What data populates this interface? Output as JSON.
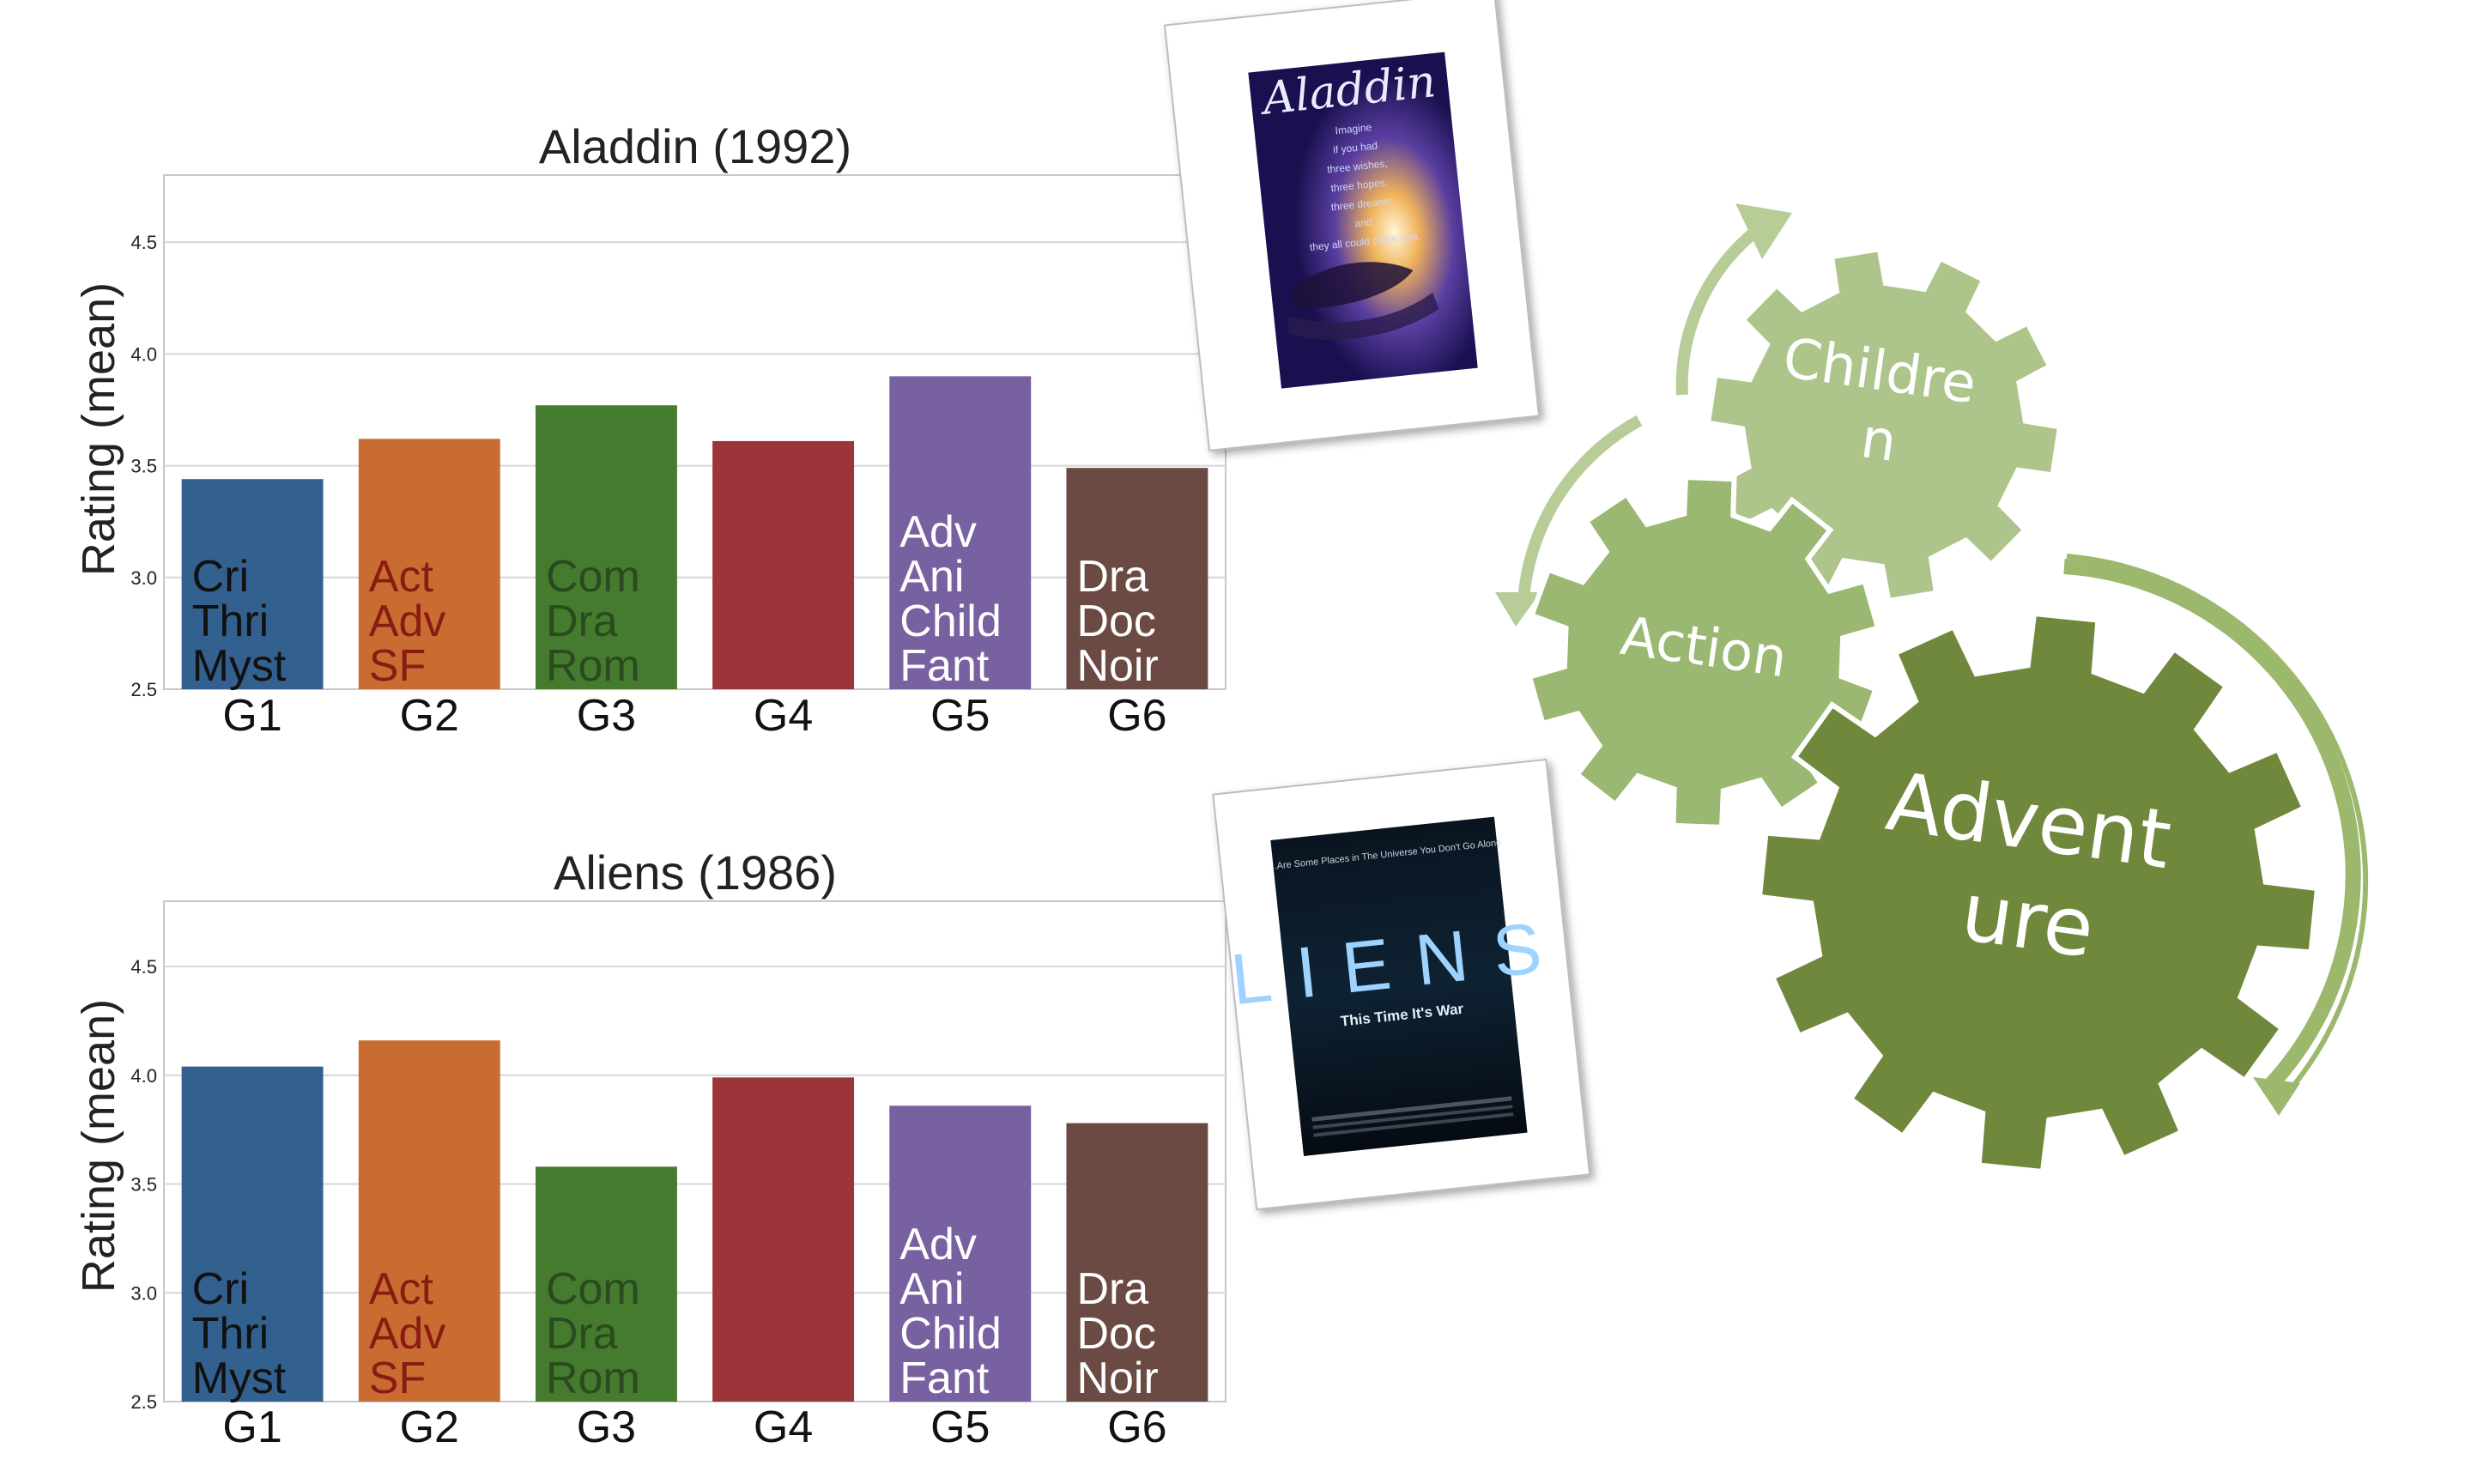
{
  "chart_data": [
    {
      "type": "bar",
      "title": "Aladdin (1992)",
      "ylabel": "Rating (mean)",
      "xlabel": "",
      "ylim": [
        2.5,
        4.8
      ],
      "yticks": [
        "2.5",
        "3.0",
        "3.5",
        "4.0",
        "4.5"
      ],
      "grid": true,
      "categories": [
        "G1",
        "G2",
        "G3",
        "G4",
        "G5",
        "G6"
      ],
      "values": [
        3.44,
        3.62,
        3.77,
        3.61,
        3.9,
        3.49
      ],
      "bar_labels": [
        [
          "Cri",
          "Thri",
          "Myst"
        ],
        [
          "Act",
          "Adv",
          "SF"
        ],
        [
          "Com",
          "Dra",
          "Rom"
        ],
        [],
        [
          "Adv",
          "Ani",
          "Child",
          "Fant"
        ],
        [
          "Dra",
          "Doc",
          "Noir"
        ]
      ],
      "colors": [
        "#33618f",
        "#c96c32",
        "#457b2e",
        "#9c3539",
        "#7761a0",
        "#6a4a42"
      ],
      "label_colors": [
        "#111111",
        "#8b1a12",
        "#2b4a1f",
        "#ffffff",
        "#ffffff",
        "#ffffff"
      ]
    },
    {
      "type": "bar",
      "title": "Aliens (1986)",
      "ylabel": "Rating (mean)",
      "xlabel": "",
      "ylim": [
        2.5,
        4.8
      ],
      "yticks": [
        "2.5",
        "3.0",
        "3.5",
        "4.0",
        "4.5"
      ],
      "grid": true,
      "categories": [
        "G1",
        "G2",
        "G3",
        "G4",
        "G5",
        "G6"
      ],
      "values": [
        4.04,
        4.16,
        3.58,
        3.99,
        3.86,
        3.78
      ],
      "bar_labels": [
        [
          "Cri",
          "Thri",
          "Myst"
        ],
        [
          "Act",
          "Adv",
          "SF"
        ],
        [
          "Com",
          "Dra",
          "Rom"
        ],
        [],
        [
          "Adv",
          "Ani",
          "Child",
          "Fant"
        ],
        [
          "Dra",
          "Doc",
          "Noir"
        ]
      ],
      "colors": [
        "#33618f",
        "#c96c32",
        "#457b2e",
        "#9c3539",
        "#7761a0",
        "#6a4a42"
      ],
      "label_colors": [
        "#111111",
        "#8b1a12",
        "#2b4a1f",
        "#ffffff",
        "#ffffff",
        "#ffffff"
      ]
    }
  ],
  "posters": {
    "aladdin": {
      "title": "Aladdin",
      "tagline": [
        "Imagine",
        "if you had",
        "three wishes,",
        "three hopes,",
        "three dreams",
        "and",
        "they all could come true."
      ]
    },
    "aliens": {
      "top_line": "...Are Some Places in The Universe You Don't Go Alone",
      "title": "LIENS",
      "tagline": "This Time It's War"
    }
  },
  "gears": {
    "labels": {
      "children": [
        "Childre",
        "n"
      ],
      "action": [
        "Action"
      ],
      "adventure": [
        "Advent",
        "ure"
      ]
    },
    "colors": {
      "light": "#adc48a",
      "mid": "#9bb872",
      "dark": "#70883c"
    }
  }
}
